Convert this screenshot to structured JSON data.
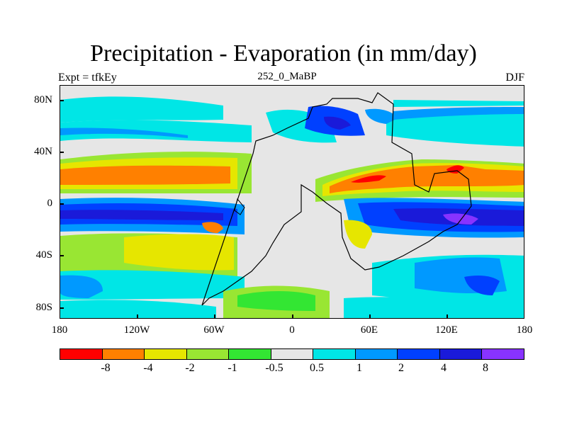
{
  "title": "Precipitation - Evaporation (in mm/day)",
  "left_label": "Expt = tfkEy",
  "center_label": "252_0_MaBP",
  "right_label": "DJF",
  "y_axis": {
    "ticks": [
      "80N",
      "40N",
      "0",
      "40S",
      "80S"
    ]
  },
  "x_axis": {
    "ticks": [
      "180",
      "120W",
      "60W",
      "0",
      "60E",
      "120E",
      "180"
    ]
  },
  "colorbar": {
    "colors": [
      "#ff0000",
      "#ff8000",
      "#e6e600",
      "#99e633",
      "#33e633",
      "#e6e6e6",
      "#00e6e6",
      "#0099ff",
      "#0040ff",
      "#1a1ad9",
      "#8833ff"
    ],
    "labels": [
      "-8",
      "-4",
      "-2",
      "-1",
      "-0.5",
      "0.5",
      "1",
      "2",
      "4",
      "8"
    ]
  }
}
